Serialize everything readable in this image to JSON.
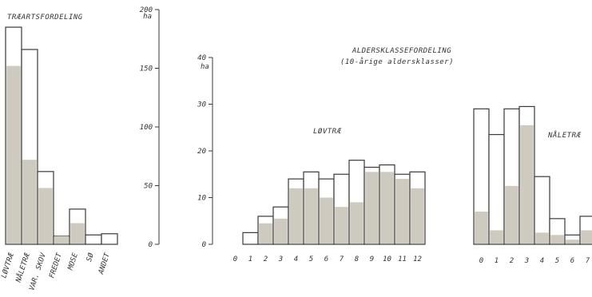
{
  "chart_data": [
    {
      "type": "bar",
      "title": "TRÆARTSFORDELING",
      "categories": [
        "LØVTRÆ",
        "NÅLETRÆ",
        "VAR. SKOV",
        "FREDET",
        "MOSE",
        "SØ",
        "ANDET"
      ],
      "series": [
        {
          "values": [
            185,
            166,
            62,
            7,
            30,
            8,
            9
          ]
        },
        {
          "values": [
            152,
            72,
            48,
            7,
            18,
            0,
            0
          ]
        }
      ],
      "ylabel": "ha",
      "yticks": [
        0,
        50,
        100,
        150,
        200
      ],
      "ylim": [
        0,
        200
      ],
      "colors": {
        "outline": "#3a3a3a",
        "fill": "#cfcac0"
      }
    },
    {
      "type": "bar",
      "title": "ALDERSKLASSEFORDELING",
      "subtitle": "(10-årige aldersklasser)",
      "label": "LØVTRÆ",
      "categories": [
        "0",
        "1",
        "2",
        "3",
        "4",
        "5",
        "6",
        "7",
        "8",
        "9",
        "10",
        "11",
        "12"
      ],
      "series": [
        {
          "values": [
            0,
            2.5,
            6,
            8,
            14,
            15.5,
            14,
            15,
            18,
            16.5,
            17,
            15,
            15.5
          ]
        },
        {
          "values": [
            0,
            0,
            4.5,
            5.5,
            12,
            12,
            10,
            8,
            9,
            15.5,
            15.5,
            14,
            12
          ]
        }
      ],
      "ylabel": "ha",
      "yticks": [
        0,
        10,
        20,
        30,
        40
      ],
      "ylim": [
        0,
        40
      ],
      "colors": {
        "outline": "#3a3a3a",
        "fill": "#cfcac0"
      }
    },
    {
      "type": "bar",
      "label": "NÅLETRÆ",
      "categories": [
        "0",
        "1",
        "2",
        "3",
        "4",
        "5",
        "6",
        "7"
      ],
      "series": [
        {
          "values": [
            29,
            23.5,
            29,
            29.5,
            14.5,
            5.5,
            2,
            6
          ]
        },
        {
          "values": [
            7,
            3,
            12.5,
            25.5,
            2.5,
            2,
            1,
            3
          ]
        }
      ],
      "ylim": [
        0,
        40
      ],
      "colors": {
        "outline": "#3a3a3a",
        "fill": "#cfcac0"
      }
    }
  ]
}
